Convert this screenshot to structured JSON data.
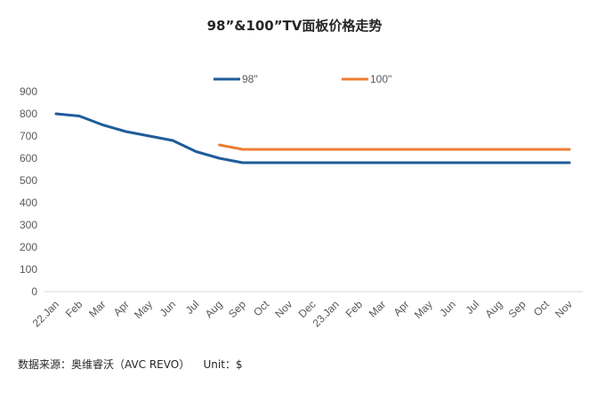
{
  "chart_data": {
    "type": "line",
    "title": "98”&100”TV面板价格走势",
    "xlabel": "",
    "ylabel": "",
    "ylim": [
      0,
      900
    ],
    "yticks": [
      0,
      100,
      200,
      300,
      400,
      500,
      600,
      700,
      800,
      900
    ],
    "grid": false,
    "legend_position": "top-center",
    "categories": [
      "22.Jan",
      "Feb",
      "Mar",
      "Apr",
      "May",
      "Jun",
      "Jul",
      "Aug",
      "Sep",
      "Oct",
      "Nov",
      "Dec",
      "23.Jan",
      "Feb",
      "Mar",
      "Apr",
      "May",
      "Jun",
      "Jul",
      "Aug",
      "Sep",
      "Oct",
      "Nov"
    ],
    "series": [
      {
        "name": "98\"",
        "color": "#1F5C99",
        "values": [
          800,
          790,
          750,
          720,
          700,
          680,
          630,
          600,
          580,
          580,
          580,
          580,
          580,
          580,
          580,
          580,
          580,
          580,
          580,
          580,
          580,
          580,
          580
        ]
      },
      {
        "name": "100\"",
        "color": "#ED7D31",
        "values": [
          null,
          null,
          null,
          null,
          null,
          null,
          null,
          660,
          640,
          640,
          640,
          640,
          640,
          640,
          640,
          640,
          640,
          640,
          640,
          640,
          640,
          640,
          640
        ]
      }
    ]
  },
  "footer": {
    "source": "数据来源：奥维睿沃（AVC REVO）",
    "unit": "Unit：$"
  }
}
